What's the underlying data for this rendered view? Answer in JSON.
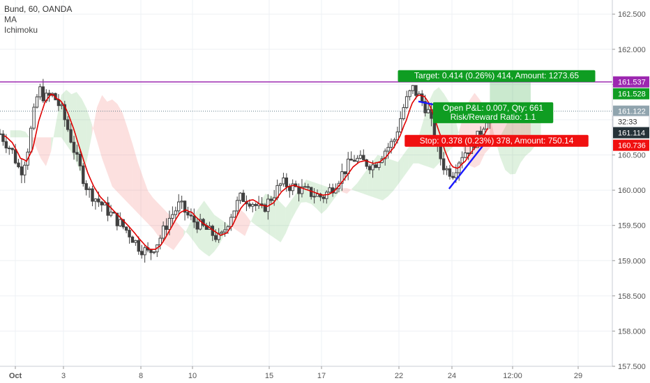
{
  "legend": {
    "title": "Bund, 60, OANDA",
    "items": [
      "MA",
      "Ichimoku"
    ]
  },
  "colors": {
    "candle": "#404040",
    "ma": "#e00000",
    "cloud_green": "#4caf50",
    "cloud_red": "#ef5350",
    "resistance": "#9c27b0",
    "trendline": "#1a1aff",
    "target": "#0f9d22",
    "stop": "#f01010",
    "grid": "#eef0f4",
    "axis_text": "#555555"
  },
  "chart_data": {
    "type": "candlestick",
    "y_ticks": [
      "162.500",
      "162.000",
      "161.500",
      "161.000",
      "160.500",
      "160.000",
      "159.500",
      "159.000",
      "158.500",
      "158.000",
      "157.500"
    ],
    "x_ticks": [
      "Oct",
      "3",
      "8",
      "10",
      "15",
      "17",
      "22",
      "24",
      "12:00",
      "29"
    ],
    "ylim": [
      157.5,
      162.7
    ],
    "grid": true,
    "price_tags": [
      {
        "value": "161.537",
        "color": "#9c27b0"
      },
      {
        "value": "161.528",
        "color": "#0f9d22"
      },
      {
        "value": "161.122",
        "color": "#90a4ae"
      },
      {
        "value": "32:33",
        "color": "#ffffff"
      },
      {
        "value": "161.114",
        "color": "#263238"
      },
      {
        "value": "160.736",
        "color": "#f01010"
      }
    ],
    "resistance_level": 161.537,
    "position": {
      "entry": 161.114,
      "target_price": 161.528,
      "stop_price": 160.736,
      "target_text": "Target: 0.414 (0.26%) 414, Amount: 1273.65",
      "pnl_text": "Open P&L: 0.007, Qty: 661",
      "rr_text": "Risk/Reward Ratio: 1.1",
      "stop_text": "Stop: 0.378 (0.23%) 378, Amount: 750.14"
    },
    "trendlines": [
      {
        "from": [
          20.5,
          161.26
        ],
        "to": [
          24.0,
          161.05
        ]
      },
      {
        "from": [
          22.0,
          160.02
        ],
        "to": [
          23.9,
          160.72
        ]
      }
    ],
    "price_path": [
      [
        0.0,
        160.8
      ],
      [
        0.6,
        160.55
      ],
      [
        1.0,
        160.25
      ],
      [
        1.3,
        160.5
      ],
      [
        1.6,
        161.0
      ],
      [
        1.9,
        161.45
      ],
      [
        2.2,
        161.3
      ],
      [
        2.6,
        161.35
      ],
      [
        3.0,
        161.15
      ],
      [
        3.4,
        160.8
      ],
      [
        3.8,
        160.4
      ],
      [
        4.3,
        160.0
      ],
      [
        4.8,
        159.85
      ],
      [
        5.3,
        159.7
      ],
      [
        5.8,
        159.55
      ],
      [
        6.3,
        159.4
      ],
      [
        6.8,
        159.2
      ],
      [
        7.3,
        159.1
      ],
      [
        7.8,
        159.3
      ],
      [
        8.3,
        159.6
      ],
      [
        8.8,
        159.8
      ],
      [
        9.3,
        159.6
      ],
      [
        9.8,
        159.5
      ],
      [
        10.3,
        159.4
      ],
      [
        10.8,
        159.3
      ],
      [
        11.3,
        159.65
      ],
      [
        11.8,
        159.9
      ],
      [
        12.3,
        159.85
      ],
      [
        12.8,
        159.7
      ],
      [
        13.3,
        159.9
      ],
      [
        13.8,
        160.1
      ],
      [
        14.3,
        160.05
      ],
      [
        14.8,
        160.0
      ],
      [
        15.3,
        159.95
      ],
      [
        15.8,
        159.9
      ],
      [
        16.3,
        160.05
      ],
      [
        16.8,
        160.25
      ],
      [
        17.3,
        160.45
      ],
      [
        17.8,
        160.4
      ],
      [
        18.3,
        160.35
      ],
      [
        18.8,
        160.55
      ],
      [
        19.3,
        160.7
      ],
      [
        19.8,
        161.2
      ],
      [
        20.2,
        161.45
      ],
      [
        20.6,
        161.3
      ],
      [
        21.0,
        161.1
      ],
      [
        21.4,
        160.6
      ],
      [
        21.8,
        160.3
      ],
      [
        22.2,
        160.25
      ],
      [
        22.6,
        160.5
      ],
      [
        23.0,
        160.6
      ],
      [
        23.4,
        160.75
      ],
      [
        23.8,
        161.0
      ],
      [
        24.0,
        161.11
      ]
    ],
    "candle_count": 160
  }
}
